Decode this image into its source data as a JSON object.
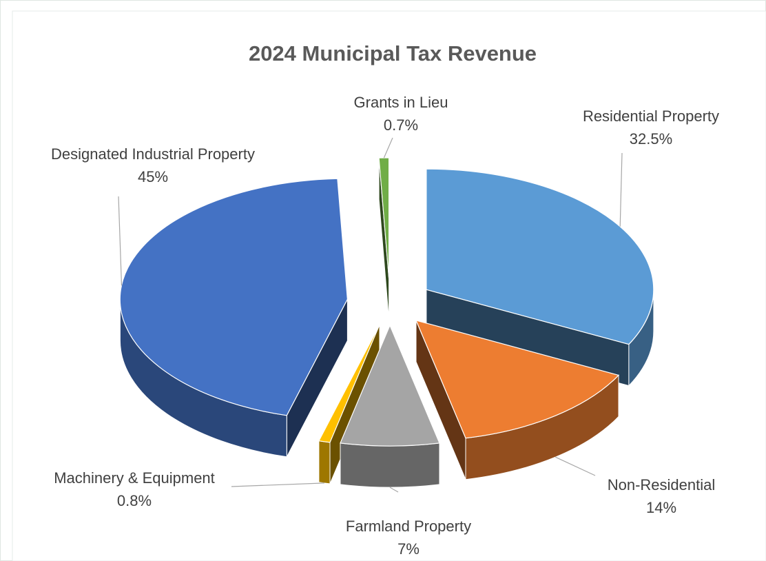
{
  "chart_data": {
    "type": "pie",
    "title": "2024 Municipal Tax Revenue",
    "categories": [
      "Residential Property",
      "Non-Residential",
      "Farmland Property",
      "Machinery & Equipment",
      "Designated Industrial Property",
      "Grants in Lieu"
    ],
    "values": [
      32.5,
      14,
      7,
      0.8,
      45,
      0.7
    ],
    "value_labels": [
      "32.5%",
      "14%",
      "7%",
      "0.8%",
      "45%",
      "0.7%"
    ],
    "colors": [
      "#5b9bd5",
      "#ed7d31",
      "#a5a5a5",
      "#ffc000",
      "#4472c4",
      "#70ad47"
    ]
  }
}
